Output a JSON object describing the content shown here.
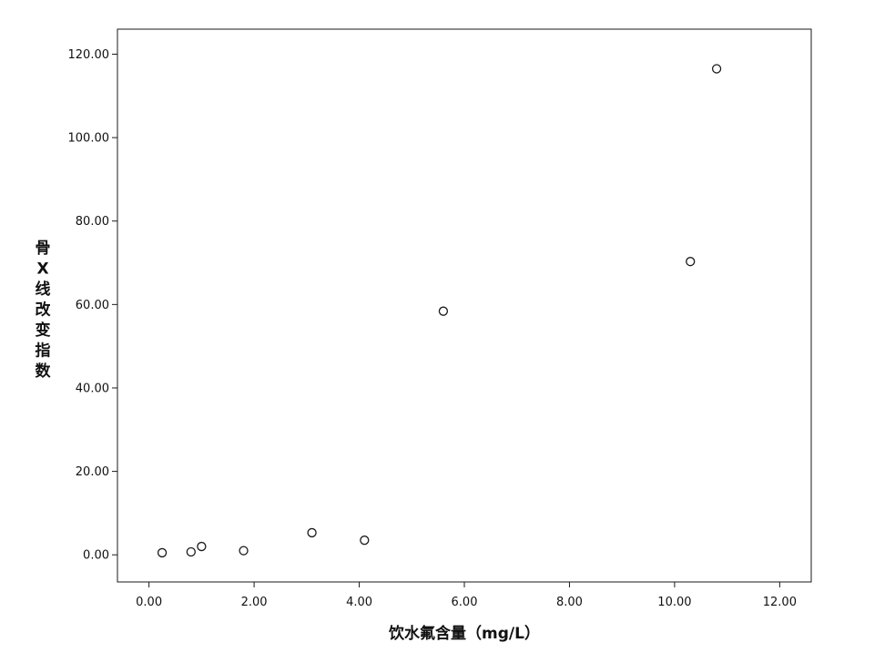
{
  "chart_data": {
    "type": "scatter",
    "xlabel": "饮水氟含量（mg/L）",
    "ylabel": "骨X线改变指数",
    "xlim": [
      -0.6,
      12.6
    ],
    "ylim": [
      -6.5,
      126
    ],
    "xticks": [
      0,
      2,
      4,
      6,
      8,
      10,
      12
    ],
    "yticks": [
      0,
      20,
      40,
      60,
      80,
      100,
      120
    ],
    "xtick_labels": [
      "0.00",
      "2.00",
      "4.00",
      "6.00",
      "8.00",
      "10.00",
      "12.00"
    ],
    "ytick_labels": [
      "0.00",
      "20.00",
      "40.00",
      "60.00",
      "80.00",
      "100.00",
      "120.00"
    ],
    "grid": false,
    "marker": "open-circle",
    "points": [
      {
        "x": 0.25,
        "y": 0.5
      },
      {
        "x": 0.8,
        "y": 0.7
      },
      {
        "x": 1.0,
        "y": 2.0
      },
      {
        "x": 1.8,
        "y": 1.0
      },
      {
        "x": 3.1,
        "y": 5.3
      },
      {
        "x": 4.1,
        "y": 3.5
      },
      {
        "x": 5.6,
        "y": 58.4
      },
      {
        "x": 10.3,
        "y": 70.3
      },
      {
        "x": 10.8,
        "y": 116.5
      }
    ]
  },
  "colors": {
    "frame": "#1a1a1a",
    "marker_stroke": "#1a1a1a",
    "marker_fill": "#ffffff",
    "text": "#111111"
  }
}
